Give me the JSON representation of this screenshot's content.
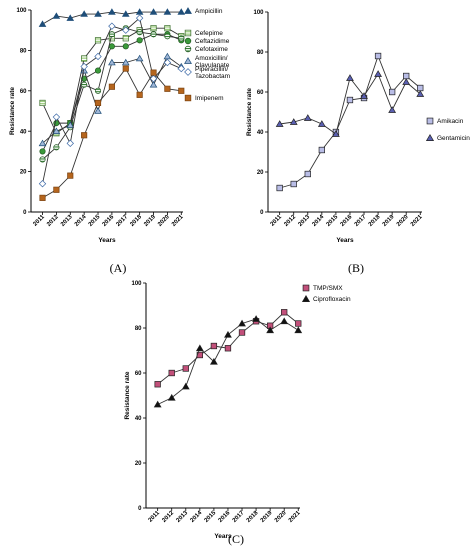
{
  "figure": {
    "panel_labels": [
      "(A)",
      "(B)",
      "(C)"
    ]
  },
  "styles": {
    "colors": {
      "Ampicillin": "#1f4e79",
      "Cefepime": "#8dc56a",
      "Ceftazidime": "#3a9a3a",
      "Cefotaxime": "#2f7d2f",
      "Amoxicillin/ Clavulanate": "#1f4e79",
      "Piperacillin/ Tazobactam": "#3d6aa8",
      "Imipenem": "#b5651d",
      "Amikacin": "#b9bde6",
      "Gentamicin": "#5a5fb0",
      "TMP/SMX": "#c2507a",
      "Ciprofloxacin": "#111111"
    }
  },
  "chart_data": [
    {
      "type": "line",
      "panel": "(A)",
      "title": "",
      "xlabel": "Years",
      "ylabel": "Resistance rate",
      "ylim": [
        0,
        100
      ],
      "yticks": [
        0,
        20,
        40,
        60,
        80,
        100
      ],
      "categories": [
        "2011",
        "2012",
        "2013",
        "2014",
        "2015",
        "2016",
        "2017",
        "2018",
        "2019",
        "2020",
        "2021"
      ],
      "grid": false,
      "legend_position": "right",
      "series": [
        {
          "name": "Ampicillin",
          "marker": "triangle-filled",
          "values": [
            93,
            97,
            96,
            98,
            98,
            99,
            98,
            99,
            99,
            99,
            99
          ]
        },
        {
          "name": "Cefepime",
          "marker": "square-striped",
          "values": [
            54,
            39,
            44,
            76,
            85,
            86,
            86,
            90,
            91,
            91,
            87
          ]
        },
        {
          "name": "Ceftazidime",
          "marker": "circle-filled",
          "values": [
            30,
            44,
            44,
            66,
            70,
            82,
            82,
            85,
            88,
            88,
            85
          ]
        },
        {
          "name": "Cefotaxime",
          "marker": "circle-striped",
          "values": [
            26,
            32,
            42,
            63,
            60,
            88,
            91,
            89,
            88,
            87,
            86
          ]
        },
        {
          "name": "Amoxicillin/ Clavulanate",
          "marker": "triangle-light",
          "values": [
            34,
            40,
            43,
            70,
            50,
            74,
            74,
            76,
            63,
            77,
            72
          ]
        },
        {
          "name": "Piperacillin/ Tazobactam",
          "marker": "diamond",
          "values": [
            14,
            47,
            34,
            72,
            77,
            92,
            90,
            96,
            66,
            74,
            71
          ]
        },
        {
          "name": "Imipenem",
          "marker": "square-filled",
          "values": [
            7,
            11,
            18,
            38,
            54,
            62,
            71,
            58,
            69,
            61,
            60
          ]
        }
      ]
    },
    {
      "type": "line",
      "panel": "(B)",
      "title": "",
      "xlabel": "Years",
      "ylabel": "Resistance rate",
      "ylim": [
        0,
        100
      ],
      "yticks": [
        0,
        20,
        40,
        60,
        80,
        100
      ],
      "categories": [
        "2011",
        "2012",
        "2013",
        "2014",
        "2015",
        "2016",
        "2017",
        "2018",
        "2019",
        "2020",
        "2021"
      ],
      "grid": false,
      "legend_position": "right",
      "series": [
        {
          "name": "Amikacin",
          "marker": "square",
          "values": [
            12,
            14,
            19,
            31,
            40,
            56,
            57,
            78,
            60,
            68,
            62
          ]
        },
        {
          "name": "Gentamicin",
          "marker": "triangle",
          "values": [
            44,
            45,
            47,
            44,
            39,
            67,
            58,
            69,
            51,
            65,
            59
          ]
        }
      ]
    },
    {
      "type": "line",
      "panel": "(C)",
      "title": "",
      "xlabel": "Years",
      "ylabel": "Resistance rate",
      "ylim": [
        0,
        100
      ],
      "yticks": [
        0,
        20,
        40,
        60,
        80,
        100
      ],
      "categories": [
        "2011",
        "2012",
        "2013",
        "2014",
        "2015",
        "2016",
        "2017",
        "2018",
        "2019",
        "2020",
        "2021"
      ],
      "grid": false,
      "legend_position": "top-right",
      "series": [
        {
          "name": "TMP/SMX",
          "marker": "square",
          "values": [
            55,
            60,
            62,
            68,
            72,
            71,
            78,
            83,
            81,
            87,
            82
          ]
        },
        {
          "name": "Ciprofloxacin",
          "marker": "triangle",
          "values": [
            46,
            49,
            54,
            71,
            65,
            77,
            82,
            84,
            79,
            83,
            79
          ]
        }
      ]
    }
  ]
}
